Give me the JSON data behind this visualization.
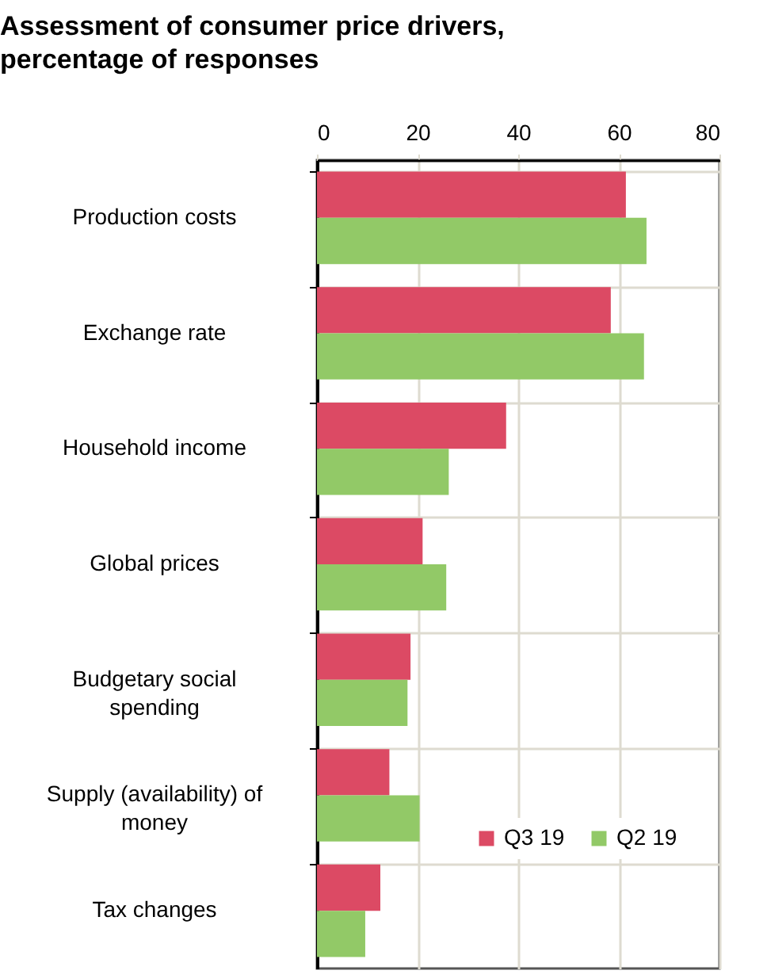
{
  "chart_data": {
    "type": "bar",
    "orientation": "horizontal",
    "title": "Assessment of consumer price drivers, percentage of responses",
    "categories": [
      "Production costs",
      "Exchange rate",
      "Household income",
      "Global prices",
      "Budgetary social spending",
      "Supply (availability) of money",
      "Tax changes"
    ],
    "series": [
      {
        "name": "Q3 19",
        "color": "#dc4a64",
        "values": [
          61.4,
          58.4,
          37.6,
          21,
          18.6,
          14.4,
          12.6
        ]
      },
      {
        "name": "Q2 19",
        "color": "#92c967",
        "values": [
          65.5,
          65,
          26.2,
          25.7,
          18,
          20.4,
          9.6
        ]
      }
    ],
    "xlim": [
      0,
      80
    ],
    "xticks": [
      0,
      20,
      40,
      60,
      80
    ],
    "grid": true,
    "legend": "bottom right"
  }
}
